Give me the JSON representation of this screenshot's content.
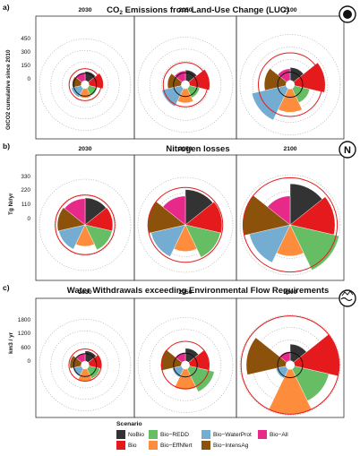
{
  "panels": [
    {
      "letter": "a)",
      "title_main": "CO",
      "title_sub": "2",
      "title_rest": " Emissions from Land-Use Change (LUC)",
      "ylabel": "GtCO2 cumulative since 2010",
      "ticks": [
        "450",
        "300",
        "150",
        "0"
      ],
      "years": [
        "2030",
        "2050",
        "2100"
      ],
      "icon": "globe-icon"
    },
    {
      "letter": "b)",
      "title_main": "Nitrogen losses",
      "title_sub": "",
      "title_rest": "",
      "ylabel": "Tg Nr/yr",
      "ticks": [
        "330",
        "220",
        "110",
        "0"
      ],
      "years": [
        "2030",
        "2050",
        "2100"
      ],
      "icon": "nitrogen-icon",
      "icon_text": "N"
    },
    {
      "letter": "c)",
      "title_main": "Water Withdrawals exceeding Environmental Flow Requirements",
      "title_sub": "",
      "title_rest": "",
      "ylabel": "km3 / yr",
      "ticks": [
        "1800",
        "1200",
        "600",
        "0"
      ],
      "years": [
        "2030",
        "2050",
        "2100"
      ],
      "icon": "water-icon"
    }
  ],
  "legend": {
    "title": "Scenario",
    "items": [
      {
        "label": "NoBio",
        "color": "#333333"
      },
      {
        "label": "Bio",
        "color": "#e41a1c"
      },
      {
        "label": "Bio−REDD",
        "color": "#66bd63"
      },
      {
        "label": "Bio−EffNfert",
        "color": "#fd8d3c"
      },
      {
        "label": "Bio−WaterProt",
        "color": "#74add1"
      },
      {
        "label": "Bio−IntensAg",
        "color": "#8c510a"
      },
      {
        "label": "Bio−All",
        "color": "#e7298a"
      }
    ]
  },
  "chart_data": [
    {
      "type": "polar-bar",
      "title": "CO2 Emissions from Land-Use Change (LUC)",
      "ylabel": "GtCO2 cumulative since 2010",
      "ylim": [
        -150,
        450
      ],
      "ticks": [
        0,
        150,
        300,
        450
      ],
      "facets": [
        "2030",
        "2050",
        "2100"
      ],
      "categories": [
        "NoBio",
        "Bio",
        "Bio-REDD",
        "Bio-EffNfert",
        "Bio-WaterProt",
        "Bio-IntensAg",
        "Bio-All"
      ],
      "series": [
        {
          "name": "2030",
          "values": [
            25,
            90,
            15,
            25,
            35,
            20,
            10
          ],
          "reference_circle": 60
        },
        {
          "name": "2050",
          "values": [
            35,
            160,
            35,
            80,
            155,
            75,
            25
          ],
          "reference_circle": 130
        },
        {
          "name": "2100",
          "values": [
            55,
            270,
            90,
            180,
            320,
            160,
            40
          ],
          "reference_circle": 230
        }
      ]
    },
    {
      "type": "polar-bar",
      "title": "Nitrogen losses",
      "ylabel": "Tg Nr/yr",
      "ylim": [
        0,
        330
      ],
      "ticks": [
        0,
        110,
        220,
        330
      ],
      "facets": [
        "2030",
        "2050",
        "2100"
      ],
      "categories": [
        "NoBio",
        "Bio",
        "Bio-REDD",
        "Bio-EffNfert",
        "Bio-WaterProt",
        "Bio-IntensAg",
        "Bio-All"
      ],
      "series": [
        {
          "name": "2030",
          "values": [
            195,
            200,
            200,
            155,
            195,
            200,
            190
          ],
          "reference_circle": 215
        },
        {
          "name": "2050",
          "values": [
            245,
            255,
            250,
            185,
            245,
            260,
            200
          ],
          "reference_circle": 260
        },
        {
          "name": "2100",
          "values": [
            270,
            295,
            330,
            205,
            275,
            310,
            190
          ],
          "reference_circle": 310
        }
      ]
    },
    {
      "type": "polar-bar",
      "title": "Water Withdrawals exceeding Environmental Flow Requirements",
      "ylabel": "km3 / yr",
      "ylim": [
        -600,
        1800
      ],
      "ticks": [
        0,
        600,
        1200,
        1800
      ],
      "facets": [
        "2030",
        "2050",
        "2100"
      ],
      "categories": [
        "NoBio",
        "Bio",
        "Bio-REDD",
        "Bio-EffNfert",
        "Bio-WaterProt",
        "Bio-IntensAg",
        "Bio-All"
      ],
      "series": [
        {
          "name": "2030",
          "values": [
            150,
            250,
            200,
            250,
            60,
            200,
            30
          ],
          "reference_circle": 250
        },
        {
          "name": "2050",
          "values": [
            250,
            600,
            900,
            650,
            80,
            650,
            40
          ],
          "reference_circle": 600
        },
        {
          "name": "2100",
          "values": [
            400,
            1750,
            1300,
            1750,
            100,
            1500,
            50
          ],
          "reference_circle": 1750
        }
      ]
    }
  ]
}
